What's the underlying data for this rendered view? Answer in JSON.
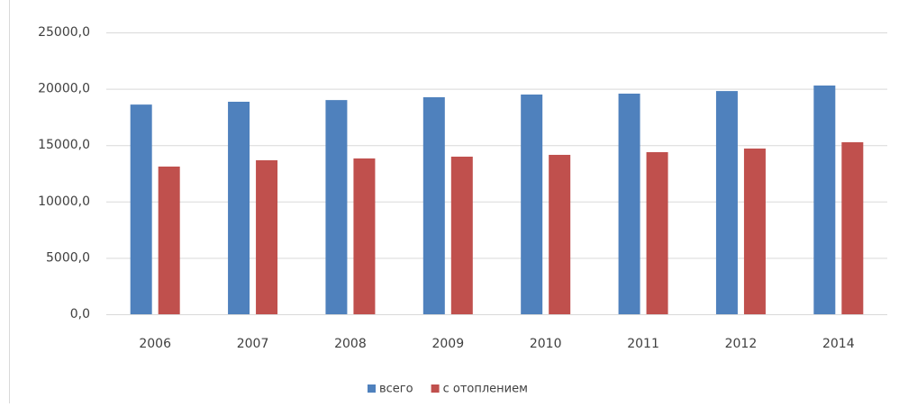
{
  "chart_data": {
    "type": "bar",
    "categories": [
      "2006",
      "2007",
      "2008",
      "2009",
      "2010",
      "2011",
      "2012",
      "2014"
    ],
    "series": [
      {
        "name": "всего",
        "color": "#4f81bd",
        "values": [
          18600,
          18850,
          19000,
          19250,
          19490,
          19570,
          19800,
          20290
        ]
      },
      {
        "name": "с отоплением",
        "color": "#c0504d",
        "values": [
          13100,
          13660,
          13820,
          13980,
          14140,
          14380,
          14700,
          15260
        ]
      }
    ],
    "ylim": [
      0,
      25000
    ],
    "yticks": [
      {
        "value": 0,
        "label": "0,0"
      },
      {
        "value": 5000,
        "label": "5000,0"
      },
      {
        "value": 10000,
        "label": "10000,0"
      },
      {
        "value": 15000,
        "label": "15000,0"
      },
      {
        "value": 20000,
        "label": "20000,0"
      },
      {
        "value": 25000,
        "label": "25000,0"
      }
    ],
    "grid": true,
    "legend": "bottom"
  }
}
